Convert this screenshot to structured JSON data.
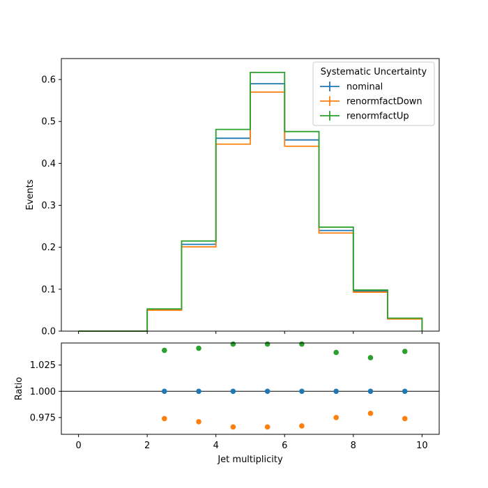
{
  "chart_data": [
    {
      "type": "histogram-step",
      "xlabel": "",
      "ylabel": "Events",
      "xlim": [
        -0.5,
        10.5
      ],
      "ylim": [
        0,
        0.65
      ],
      "xticks": [
        0,
        2,
        4,
        6,
        8,
        10
      ],
      "yticks": [
        0.0,
        0.1,
        0.2,
        0.3,
        0.4,
        0.5,
        0.6
      ],
      "bin_edges": [
        0,
        1,
        2,
        3,
        4,
        5,
        6,
        7,
        8,
        9,
        10
      ],
      "legend": {
        "title": "Systematic Uncertainty",
        "placement": "top-right"
      },
      "series": [
        {
          "name": "nominal",
          "color": "#1f77b4",
          "values": [
            0,
            0,
            0.051,
            0.207,
            0.46,
            0.59,
            0.456,
            0.24,
            0.095,
            0.03
          ]
        },
        {
          "name": "renormfactDown",
          "color": "#ff7f0e",
          "values": [
            0,
            0,
            0.05,
            0.201,
            0.446,
            0.57,
            0.441,
            0.234,
            0.093,
            0.029
          ]
        },
        {
          "name": "renormfactUp",
          "color": "#2ca02c",
          "values": [
            0,
            0,
            0.053,
            0.215,
            0.481,
            0.617,
            0.476,
            0.248,
            0.098,
            0.031
          ]
        }
      ]
    },
    {
      "type": "scatter",
      "xlabel": "Jet multiplicity",
      "ylabel": "Ratio",
      "xlim": [
        -0.5,
        10.5
      ],
      "ylim": [
        0.959,
        1.046
      ],
      "xticks": [
        0,
        2,
        4,
        6,
        8,
        10
      ],
      "yticks": [
        0.975,
        1.0,
        1.025
      ],
      "ytick_labels": [
        "0.975",
        "1.000",
        "1.025"
      ],
      "reference_line": 1.0,
      "x": [
        2.5,
        3.5,
        4.5,
        5.5,
        6.5,
        7.5,
        8.5,
        9.5
      ],
      "series": [
        {
          "name": "nominal",
          "color": "#1f77b4",
          "values": [
            1.0,
            1.0,
            1.0,
            1.0,
            1.0,
            1.0,
            1.0,
            1.0
          ]
        },
        {
          "name": "renormfactDown",
          "color": "#ff7f0e",
          "values": [
            0.974,
            0.971,
            0.966,
            0.966,
            0.967,
            0.975,
            0.979,
            0.974
          ]
        },
        {
          "name": "renormfactUp",
          "color": "#2ca02c",
          "values": [
            1.039,
            1.041,
            1.045,
            1.045,
            1.045,
            1.037,
            1.032,
            1.038
          ]
        }
      ]
    }
  ]
}
